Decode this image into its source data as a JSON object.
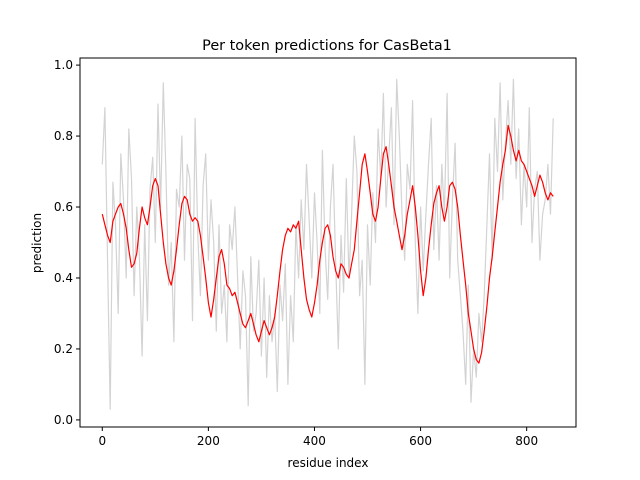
{
  "chart_data": {
    "type": "line",
    "title": "Per token predictions for CasBeta1",
    "xlabel": "residue index",
    "ylabel": "prediction",
    "xlim": [
      -42,
      893
    ],
    "ylim": [
      -0.02,
      1.02
    ],
    "xticks": [
      0,
      200,
      400,
      600,
      800
    ],
    "yticks": [
      0.0,
      0.2,
      0.4,
      0.6,
      0.8,
      1.0
    ],
    "ytick_labels": [
      "0.0",
      "0.2",
      "0.4",
      "0.6",
      "0.8",
      "1.0"
    ],
    "grid": false,
    "legend": "none",
    "series": [
      {
        "color": "#d3d3d3",
        "kind": "raw",
        "x": [
          0,
          5,
          10,
          15,
          20,
          25,
          30,
          35,
          40,
          45,
          50,
          55,
          60,
          65,
          70,
          75,
          80,
          85,
          90,
          95,
          100,
          105,
          110,
          115,
          120,
          125,
          130,
          135,
          140,
          145,
          150,
          155,
          160,
          165,
          170,
          175,
          180,
          185,
          190,
          195,
          200,
          205,
          210,
          215,
          220,
          225,
          230,
          235,
          240,
          245,
          250,
          255,
          260,
          265,
          270,
          275,
          280,
          285,
          290,
          295,
          300,
          305,
          310,
          315,
          320,
          325,
          330,
          335,
          340,
          345,
          350,
          355,
          360,
          365,
          370,
          375,
          380,
          385,
          390,
          395,
          400,
          405,
          410,
          415,
          420,
          425,
          430,
          435,
          440,
          445,
          450,
          455,
          460,
          465,
          470,
          475,
          480,
          485,
          490,
          495,
          500,
          505,
          510,
          515,
          520,
          525,
          530,
          535,
          540,
          545,
          550,
          555,
          560,
          565,
          570,
          575,
          580,
          585,
          590,
          595,
          600,
          605,
          610,
          615,
          620,
          625,
          630,
          635,
          640,
          645,
          650,
          655,
          660,
          665,
          670,
          675,
          680,
          685,
          690,
          695,
          700,
          705,
          710,
          715,
          720,
          725,
          730,
          735,
          740,
          745,
          750,
          755,
          760,
          765,
          770,
          775,
          780,
          785,
          790,
          795,
          800,
          805,
          810,
          815,
          820,
          825,
          830,
          835,
          840,
          845,
          850
        ],
        "values": [
          0.72,
          0.88,
          0.44,
          0.03,
          0.67,
          0.55,
          0.3,
          0.75,
          0.62,
          0.4,
          0.82,
          0.68,
          0.35,
          0.6,
          0.46,
          0.18,
          0.55,
          0.28,
          0.65,
          0.74,
          0.5,
          0.89,
          0.6,
          0.95,
          0.7,
          0.38,
          0.5,
          0.22,
          0.65,
          0.6,
          0.8,
          0.45,
          0.72,
          0.68,
          0.28,
          0.85,
          0.52,
          0.35,
          0.66,
          0.75,
          0.45,
          0.62,
          0.5,
          0.25,
          0.55,
          0.3,
          0.38,
          0.22,
          0.55,
          0.48,
          0.6,
          0.4,
          0.2,
          0.42,
          0.35,
          0.04,
          0.46,
          0.25,
          0.3,
          0.45,
          0.18,
          0.4,
          0.12,
          0.35,
          0.22,
          0.3,
          0.08,
          0.38,
          0.28,
          0.44,
          0.1,
          0.35,
          0.22,
          0.55,
          0.4,
          0.62,
          0.48,
          0.72,
          0.56,
          0.4,
          0.64,
          0.5,
          0.3,
          0.76,
          0.48,
          0.34,
          0.6,
          0.72,
          0.44,
          0.2,
          0.52,
          0.36,
          0.68,
          0.4,
          0.58,
          0.8,
          0.7,
          0.35,
          0.45,
          0.1,
          0.55,
          0.38,
          0.64,
          0.5,
          0.82,
          0.68,
          0.92,
          0.6,
          0.74,
          0.88,
          0.55,
          0.96,
          0.8,
          0.58,
          0.45,
          0.72,
          0.65,
          0.9,
          0.5,
          0.3,
          0.6,
          0.42,
          0.58,
          0.72,
          0.85,
          0.48,
          0.66,
          0.45,
          0.72,
          0.58,
          0.92,
          0.4,
          0.62,
          0.78,
          0.45,
          0.35,
          0.25,
          0.1,
          0.38,
          0.05,
          0.2,
          0.12,
          0.3,
          0.22,
          0.35,
          0.55,
          0.75,
          0.45,
          0.85,
          0.7,
          0.95,
          0.62,
          0.78,
          0.9,
          0.72,
          0.96,
          0.68,
          0.82,
          0.55,
          0.72,
          0.6,
          0.88,
          0.5,
          0.65,
          0.7,
          0.45,
          0.58,
          0.62,
          0.72,
          0.58,
          0.85
        ]
      },
      {
        "color": "#ff0000",
        "kind": "smoothed",
        "x": [
          0,
          5,
          10,
          15,
          20,
          25,
          30,
          35,
          40,
          45,
          50,
          55,
          60,
          65,
          70,
          75,
          80,
          85,
          90,
          95,
          100,
          105,
          110,
          115,
          120,
          125,
          130,
          135,
          140,
          145,
          150,
          155,
          160,
          165,
          170,
          175,
          180,
          185,
          190,
          195,
          200,
          205,
          210,
          215,
          220,
          225,
          230,
          235,
          240,
          245,
          250,
          255,
          260,
          265,
          270,
          275,
          280,
          285,
          290,
          295,
          300,
          305,
          310,
          315,
          320,
          325,
          330,
          335,
          340,
          345,
          350,
          355,
          360,
          365,
          370,
          375,
          380,
          385,
          390,
          395,
          400,
          405,
          410,
          415,
          420,
          425,
          430,
          435,
          440,
          445,
          450,
          455,
          460,
          465,
          470,
          475,
          480,
          485,
          490,
          495,
          500,
          505,
          510,
          515,
          520,
          525,
          530,
          535,
          540,
          545,
          550,
          555,
          560,
          565,
          570,
          575,
          580,
          585,
          590,
          595,
          600,
          605,
          610,
          615,
          620,
          625,
          630,
          635,
          640,
          645,
          650,
          655,
          660,
          665,
          670,
          675,
          680,
          685,
          690,
          695,
          700,
          705,
          710,
          715,
          720,
          725,
          730,
          735,
          740,
          745,
          750,
          755,
          760,
          765,
          770,
          775,
          780,
          785,
          790,
          795,
          800,
          805,
          810,
          815,
          820,
          825,
          830,
          835,
          840,
          845,
          850
        ],
        "values": [
          0.58,
          0.55,
          0.52,
          0.5,
          0.56,
          0.58,
          0.6,
          0.61,
          0.58,
          0.54,
          0.48,
          0.43,
          0.44,
          0.47,
          0.54,
          0.6,
          0.57,
          0.55,
          0.6,
          0.66,
          0.68,
          0.66,
          0.58,
          0.5,
          0.44,
          0.4,
          0.38,
          0.42,
          0.48,
          0.55,
          0.61,
          0.63,
          0.62,
          0.58,
          0.56,
          0.57,
          0.56,
          0.52,
          0.46,
          0.4,
          0.33,
          0.29,
          0.34,
          0.4,
          0.46,
          0.48,
          0.44,
          0.38,
          0.37,
          0.35,
          0.36,
          0.33,
          0.3,
          0.27,
          0.26,
          0.28,
          0.3,
          0.27,
          0.24,
          0.22,
          0.25,
          0.28,
          0.26,
          0.24,
          0.26,
          0.29,
          0.35,
          0.42,
          0.48,
          0.52,
          0.54,
          0.53,
          0.55,
          0.54,
          0.56,
          0.48,
          0.4,
          0.34,
          0.31,
          0.29,
          0.33,
          0.38,
          0.45,
          0.5,
          0.54,
          0.55,
          0.52,
          0.46,
          0.42,
          0.4,
          0.44,
          0.43,
          0.41,
          0.4,
          0.44,
          0.48,
          0.56,
          0.64,
          0.72,
          0.75,
          0.7,
          0.64,
          0.58,
          0.56,
          0.6,
          0.68,
          0.75,
          0.77,
          0.72,
          0.66,
          0.6,
          0.56,
          0.52,
          0.48,
          0.52,
          0.58,
          0.62,
          0.66,
          0.6,
          0.52,
          0.42,
          0.35,
          0.4,
          0.48,
          0.55,
          0.61,
          0.64,
          0.66,
          0.6,
          0.56,
          0.6,
          0.66,
          0.67,
          0.65,
          0.6,
          0.52,
          0.45,
          0.38,
          0.3,
          0.25,
          0.2,
          0.17,
          0.16,
          0.19,
          0.25,
          0.32,
          0.4,
          0.46,
          0.53,
          0.6,
          0.67,
          0.72,
          0.76,
          0.83,
          0.8,
          0.76,
          0.73,
          0.76,
          0.73,
          0.72,
          0.7,
          0.68,
          0.66,
          0.63,
          0.66,
          0.69,
          0.67,
          0.64,
          0.62,
          0.64,
          0.63
        ]
      }
    ]
  }
}
